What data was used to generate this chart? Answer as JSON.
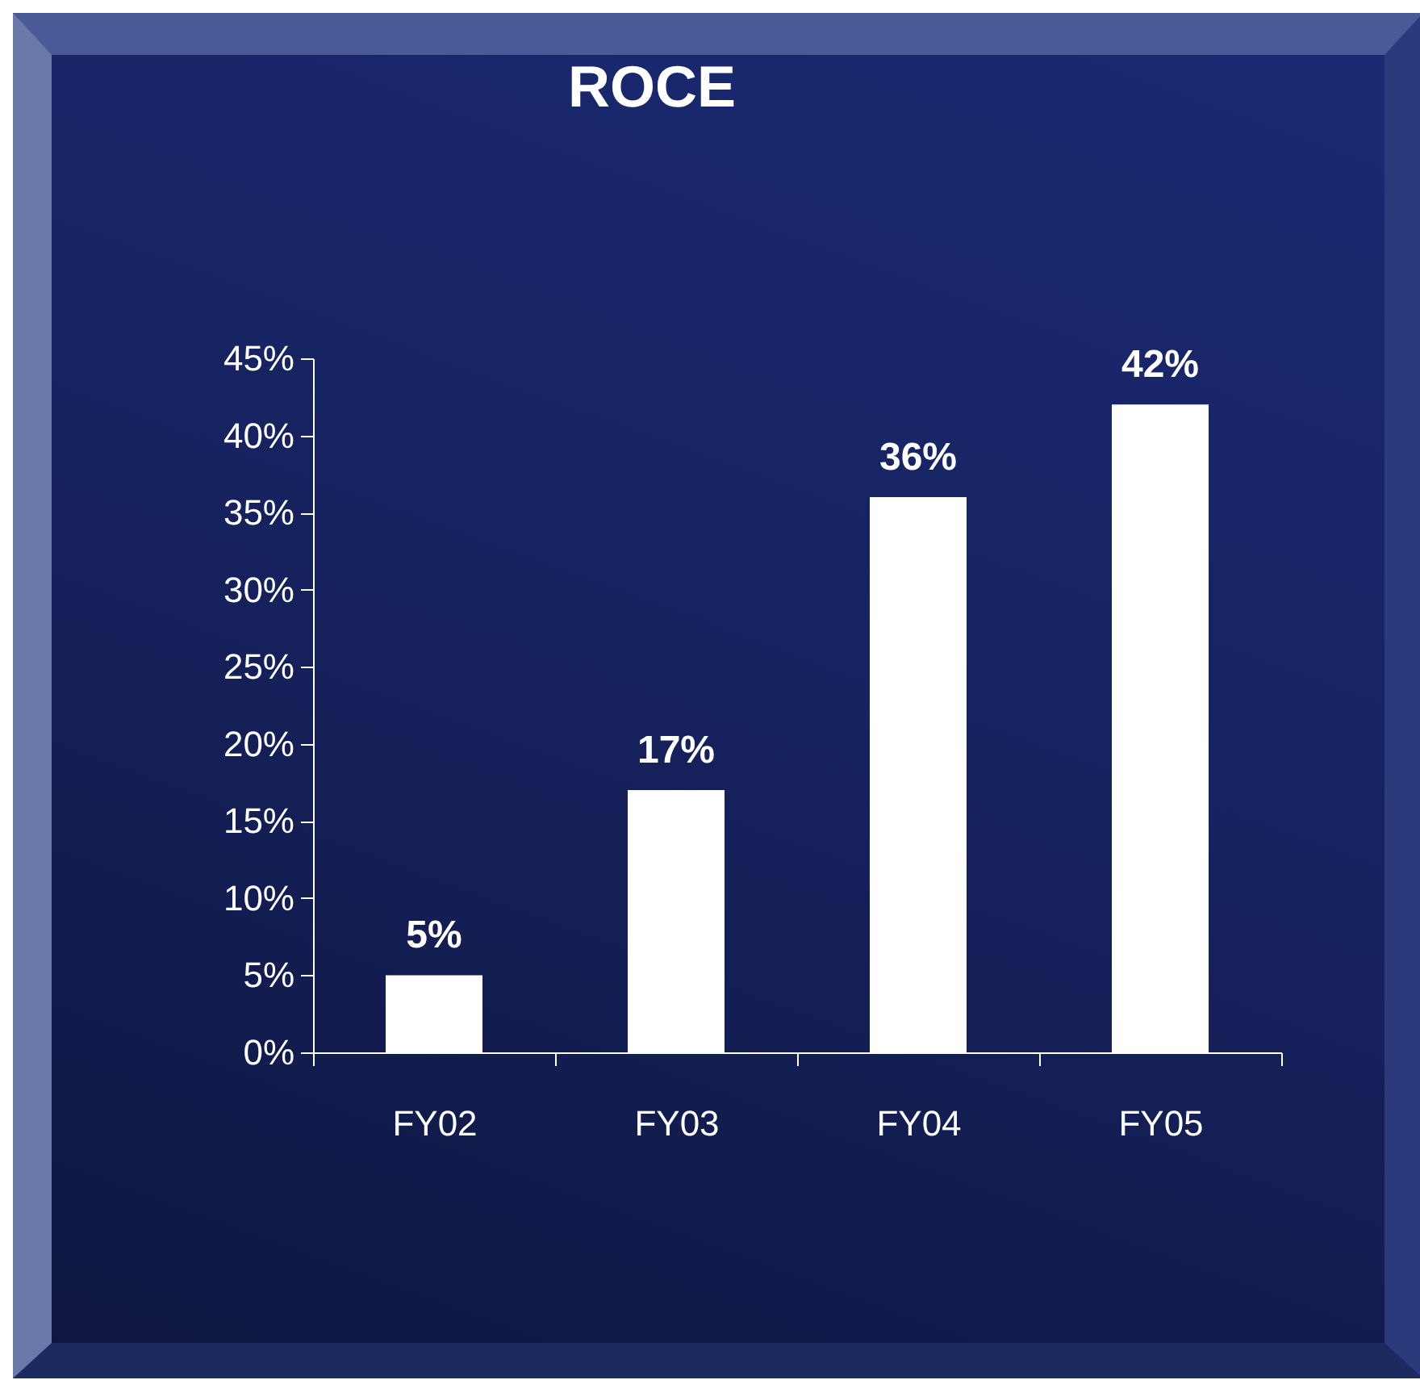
{
  "chart_data": {
    "type": "bar",
    "title": "ROCE",
    "categories": [
      "FY02",
      "FY03",
      "FY04",
      "FY05"
    ],
    "values": [
      5,
      17,
      36,
      42
    ],
    "color": "#ffffff",
    "value_labels": [
      "5%",
      "17%",
      "36%",
      "42%"
    ],
    "ylim": [
      0,
      45
    ],
    "yticks": [
      {
        "value": 0,
        "label": "0%"
      },
      {
        "value": 5,
        "label": "5%"
      },
      {
        "value": 10,
        "label": "10%"
      },
      {
        "value": 15,
        "label": "15%"
      },
      {
        "value": 20,
        "label": "20%"
      },
      {
        "value": 25,
        "label": "25%"
      },
      {
        "value": 30,
        "label": "30%"
      },
      {
        "value": 35,
        "label": "35%"
      },
      {
        "value": 40,
        "label": "40%"
      },
      {
        "value": 45,
        "label": "45%"
      }
    ],
    "grid": false
  }
}
